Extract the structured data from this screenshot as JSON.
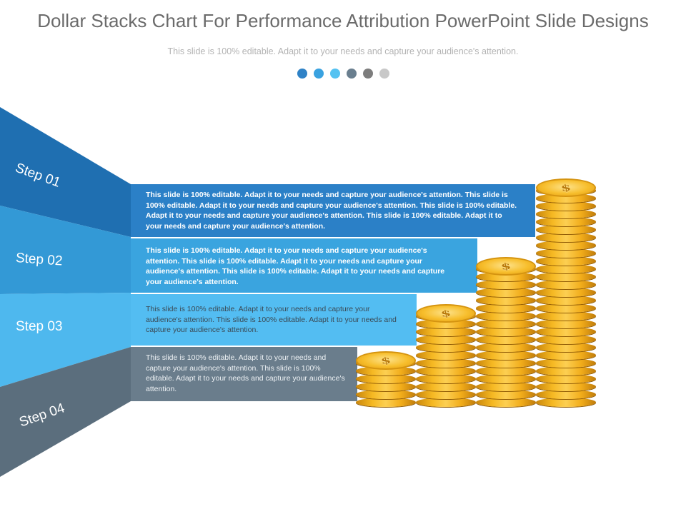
{
  "slide": {
    "title": "Dollar Stacks Chart For Performance Attribution PowerPoint Slide Designs",
    "subtitle": "This slide is 100% editable. Adapt it to your needs and capture your audience's attention."
  },
  "dots": [
    "#2f82c6",
    "#3aa2e0",
    "#55c2f1",
    "#6a7f8f",
    "#7d7d7d",
    "#c8c8c8"
  ],
  "steps": [
    {
      "label": "Step 01",
      "color": "#2b80c7",
      "text": "This slide is 100% editable. Adapt it to your needs and capture your audience's attention. This slide is 100% editable. Adapt it to your needs and capture your audience's attention. This slide is 100% editable. Adapt it to your needs and capture your audience's attention. This slide is 100% editable. Adapt it to your needs and capture your audience's attention."
    },
    {
      "label": "Step 02",
      "color": "#3aa4df",
      "text": "This slide is 100% editable. Adapt it to your needs and capture your audience's attention. This slide is 100% editable. Adapt it to your needs and capture your audience's attention. This slide is 100% editable. Adapt it to your needs and capture your audience's attention."
    },
    {
      "label": "Step 03",
      "color": "#53bdf2",
      "text": "This slide is 100% editable. Adapt it to your needs and capture your audience's attention. This slide is 100% editable. Adapt it to your needs and capture your audience's attention."
    },
    {
      "label": "Step 04",
      "color": "#6a7d8c",
      "text": "This slide is 100% editable. Adapt it to your needs and capture your audience's attention.  This slide is 100% editable. Adapt it to your needs and capture your audience's attention."
    }
  ],
  "coin_stacks": [
    {
      "symbol": "$",
      "coins": 6
    },
    {
      "symbol": "$",
      "coins": 12
    },
    {
      "symbol": "$",
      "coins": 18
    },
    {
      "symbol": "$",
      "coins": 28
    }
  ]
}
